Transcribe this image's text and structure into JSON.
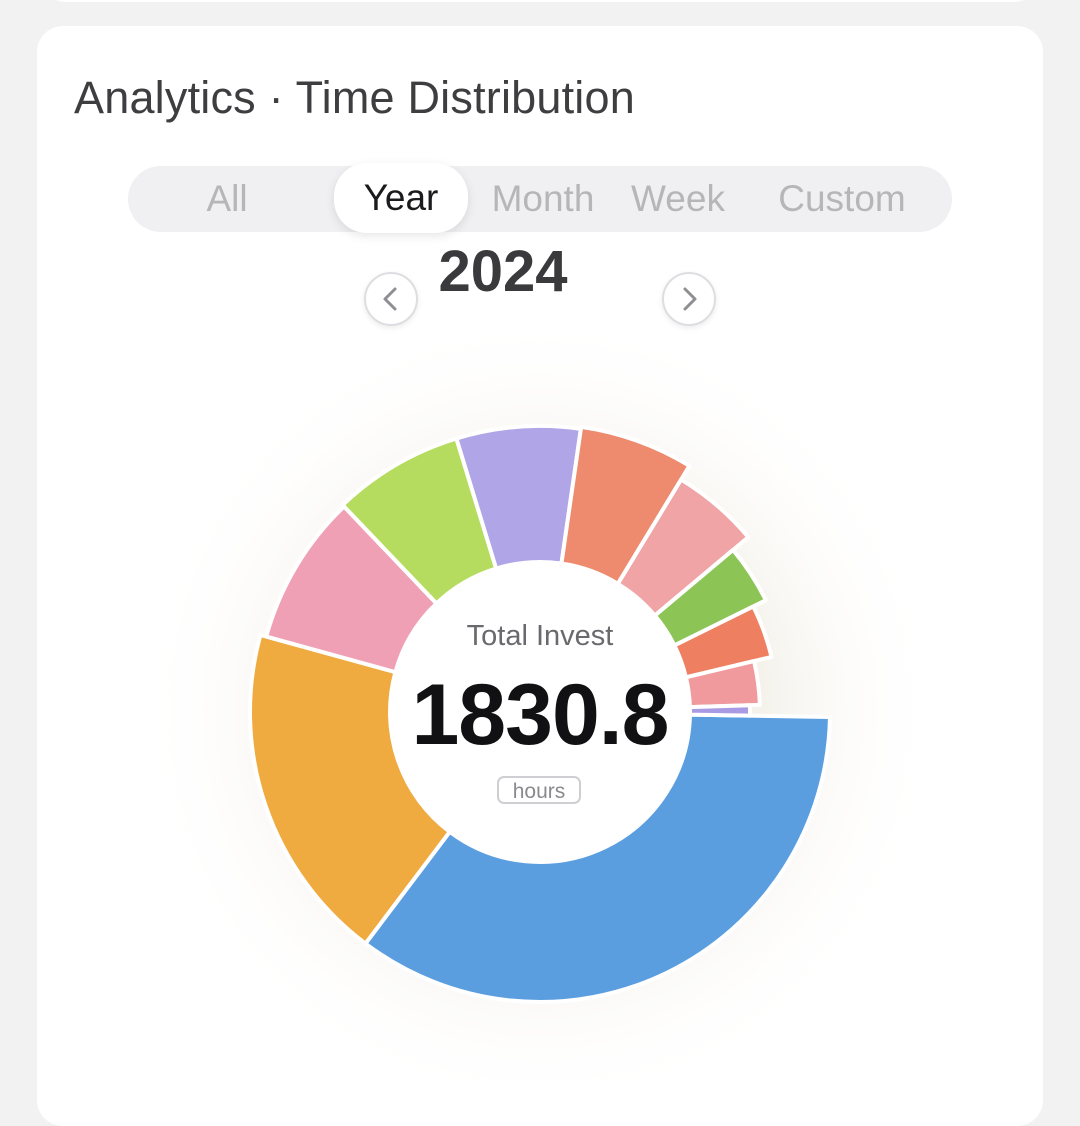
{
  "header": {
    "title": "Analytics · Time Distribution"
  },
  "tabs": [
    {
      "label": "All",
      "active": false
    },
    {
      "label": "Year",
      "active": true
    },
    {
      "label": "Month",
      "active": false
    },
    {
      "label": "Week",
      "active": false
    },
    {
      "label": "Custom",
      "active": false
    }
  ],
  "period": {
    "value": "2024",
    "prev_icon": "chevron-left-icon",
    "next_icon": "chevron-right-icon"
  },
  "summary": {
    "label": "Total Invest",
    "value": "1830.8",
    "unit": "hours"
  },
  "chart_data": {
    "type": "pie",
    "donut": true,
    "total": 1830.8,
    "unit": "hours",
    "legend": "none",
    "slices": [
      {
        "value": 640.8,
        "color": "#5b9ee0"
      },
      {
        "value": 347.9,
        "color": "#efaa40"
      },
      {
        "value": 157.4,
        "color": "#f0a0b5"
      },
      {
        "value": 135.5,
        "color": "#b5dc5e"
      },
      {
        "value": 128.2,
        "color": "#b0a5e6"
      },
      {
        "value": 117.2,
        "color": "#ee8a6e"
      },
      {
        "value": 95.2,
        "color": "#f0a4a6"
      },
      {
        "value": 69.6,
        "color": "#8cc456"
      },
      {
        "value": 65.9,
        "color": "#ee7f60"
      },
      {
        "value": 58.6,
        "color": "#f09a9e"
      },
      {
        "value": 14.5,
        "color": "#a99ae4"
      }
    ],
    "start_angle_deg": 91,
    "direction": "clockwise"
  }
}
